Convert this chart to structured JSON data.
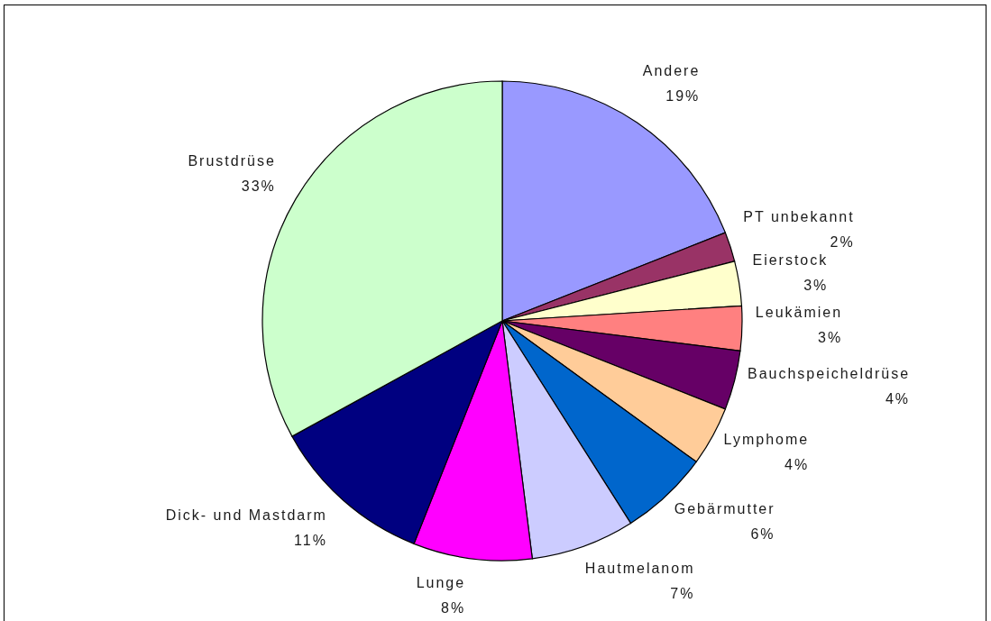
{
  "chart_data": {
    "type": "pie",
    "categories": [
      "Andere",
      "PT unbekannt",
      "Eierstock",
      "Leukämien",
      "Bauchspeicheldrüse",
      "Lymphome",
      "Gebärmutter",
      "Hautmelanom",
      "Lunge",
      "Dick- und Mastdarm",
      "Brustdrüse"
    ],
    "values": [
      19,
      2,
      3,
      3,
      4,
      4,
      6,
      7,
      8,
      11,
      33
    ],
    "colors": [
      "#9999ff",
      "#993366",
      "#ffffcc",
      "#ff8080",
      "#660066",
      "#ffcc99",
      "#0066cc",
      "#ccccff",
      "#ff00ff",
      "#000080",
      "#ccffcc"
    ],
    "value_labels": [
      "19%",
      "2%",
      "3%",
      "3%",
      "4%",
      "4%",
      "6%",
      "7%",
      "8%",
      "11%",
      "33%"
    ]
  }
}
